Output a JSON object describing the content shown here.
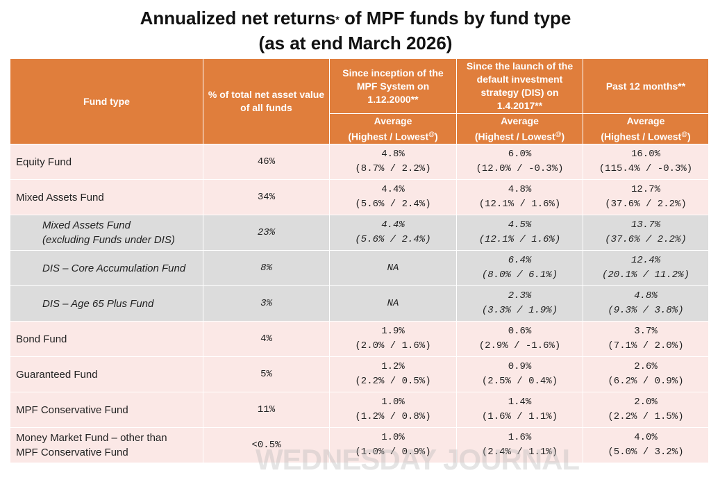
{
  "title_line1_pre": "Annualized net returns",
  "title_sup": "*",
  "title_line1_post": " of MPF funds by fund type",
  "title_line2": "(as at end March 2026)",
  "headers": {
    "fund_type": "Fund type",
    "nav_share": "% of total net asset value of all funds",
    "inception": "Since inception of the MPF System on 1.12.2000**",
    "dis": "Since the launch of the default investment strategy (DIS) on 1.4.2017**",
    "past12": "Past 12 months**",
    "avg": "Average",
    "hilo_pre": "(Highest / Lowest",
    "hilo_sup": "@",
    "hilo_post": ")"
  },
  "rows": [
    {
      "name": "Equity Fund",
      "share": "46%",
      "inc_avg": "4.8%",
      "inc_range": "(8.7% / 2.2%)",
      "dis_avg": "6.0%",
      "dis_range": "(12.0% / -0.3%)",
      "p12_avg": "16.0%",
      "p12_range": "(115.4% / -0.3%)"
    },
    {
      "name": "Mixed Assets Fund",
      "share": "34%",
      "inc_avg": "4.4%",
      "inc_range": "(5.6% / 2.4%)",
      "dis_avg": "4.8%",
      "dis_range": "(12.1% / 1.6%)",
      "p12_avg": "12.7%",
      "p12_range": "(37.6% / 2.2%)"
    },
    {
      "name": "Mixed Assets Fund\n(excluding Funds under DIS)",
      "share": "23%",
      "inc_avg": "4.4%",
      "inc_range": "(5.6% / 2.4%)",
      "dis_avg": "4.5%",
      "dis_range": "(12.1% / 1.6%)",
      "p12_avg": "13.7%",
      "p12_range": "(37.6% / 2.2%)"
    },
    {
      "name": "DIS – Core Accumulation Fund",
      "share": "8%",
      "inc_avg": "NA",
      "inc_range": "",
      "dis_avg": "6.4%",
      "dis_range": "(8.0% / 6.1%)",
      "p12_avg": "12.4%",
      "p12_range": "(20.1% / 11.2%)"
    },
    {
      "name": "DIS – Age 65 Plus Fund",
      "share": "3%",
      "inc_avg": "NA",
      "inc_range": "",
      "dis_avg": "2.3%",
      "dis_range": "(3.3% / 1.9%)",
      "p12_avg": "4.8%",
      "p12_range": "(9.3% / 3.8%)"
    },
    {
      "name": "Bond Fund",
      "share": "4%",
      "inc_avg": "1.9%",
      "inc_range": "(2.0% / 1.6%)",
      "dis_avg": "0.6%",
      "dis_range": "(2.9% / -1.6%)",
      "p12_avg": "3.7%",
      "p12_range": "(7.1% / 2.0%)"
    },
    {
      "name": "Guaranteed Fund",
      "share": "5%",
      "inc_avg": "1.2%",
      "inc_range": "(2.2% / 0.5%)",
      "dis_avg": "0.9%",
      "dis_range": "(2.5% / 0.4%)",
      "p12_avg": "2.6%",
      "p12_range": "(6.2% / 0.9%)"
    },
    {
      "name": "MPF Conservative Fund",
      "share": "11%",
      "inc_avg": "1.0%",
      "inc_range": "(1.2% / 0.8%)",
      "dis_avg": "1.4%",
      "dis_range": "(1.6% / 1.1%)",
      "p12_avg": "2.0%",
      "p12_range": "(2.2% / 1.5%)"
    },
    {
      "name": "Money Market Fund – other than\nMPF Conservative Fund",
      "share": "<0.5%",
      "inc_avg": "1.0%",
      "inc_range": "(1.0% / 0.9%)",
      "dis_avg": "1.6%",
      "dis_range": "(2.4% / 1.1%)",
      "p12_avg": "4.0%",
      "p12_range": "(5.0% / 3.2%)"
    }
  ],
  "watermark": "WEDNESDAY JOURNAL"
}
